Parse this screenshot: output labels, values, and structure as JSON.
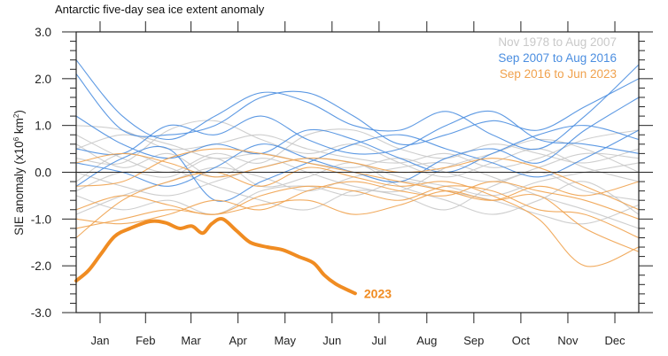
{
  "chart_data": {
    "type": "line",
    "title": "Antarctic five-day sea ice extent anomaly",
    "ylabel": "SIE anomaly (x10⁶ km²)",
    "ylabel_main": "SIE anomaly (x10",
    "ylabel_sup1": "6",
    "ylabel_mid": " km",
    "ylabel_sup2": "2",
    "ylabel_end": ")",
    "xlabel": "",
    "ylim": [
      -3.0,
      3.0
    ],
    "xlim_days": [
      0,
      365
    ],
    "yticks": [
      "3.0",
      "2.0",
      "1.0",
      "0.0",
      "-1.0",
      "-2.0",
      "-3.0"
    ],
    "ytick_values": [
      3,
      2,
      1,
      0,
      -1,
      -2,
      -3
    ],
    "months": [
      "Jan",
      "Feb",
      "Mar",
      "Apr",
      "May",
      "Jun",
      "Jul",
      "Aug",
      "Sep",
      "Oct",
      "Nov",
      "Dec"
    ],
    "zero_line": true,
    "grid": false,
    "legend_position": "top-right",
    "colors": {
      "gray": "#c9c9c9",
      "blue": "#4b8ee0",
      "orange": "#f0a24e",
      "highlight": "#f08c22",
      "axis": "#222222"
    },
    "x_days": [
      0,
      30,
      60,
      90,
      120,
      150,
      180,
      210,
      240,
      270,
      300,
      330,
      365
    ],
    "groups": [
      {
        "name": "Nov 1978 to Aug 2007",
        "color": "#c9c9c9",
        "series": [
          [
            0.5,
            0.8,
            0.6,
            0.3,
            0.4,
            0.2,
            0.1,
            0.3,
            0.0,
            -0.2,
            0.1,
            0.4,
            0.3
          ],
          [
            0.0,
            -0.3,
            -0.5,
            -0.2,
            0.1,
            0.3,
            0.2,
            -0.1,
            -0.3,
            -0.5,
            -0.2,
            0.0,
            0.2
          ],
          [
            1.0,
            0.9,
            0.5,
            0.6,
            0.8,
            0.5,
            0.3,
            0.2,
            0.4,
            0.1,
            0.3,
            0.7,
            0.9
          ],
          [
            -0.5,
            -0.8,
            -0.6,
            -0.9,
            -0.4,
            -0.3,
            -0.5,
            -0.2,
            -0.4,
            -0.6,
            -0.9,
            -1.1,
            -0.7
          ],
          [
            0.3,
            0.2,
            0.9,
            1.1,
            0.7,
            0.4,
            0.6,
            0.2,
            -0.1,
            0.2,
            0.5,
            0.1,
            -0.2
          ],
          [
            -0.2,
            0.4,
            0.1,
            -0.3,
            -0.6,
            -0.8,
            -0.4,
            -0.5,
            -0.8,
            -0.3,
            0.0,
            -0.4,
            -0.6
          ],
          [
            0.8,
            0.3,
            0.0,
            0.4,
            0.2,
            0.8,
            0.9,
            0.5,
            0.3,
            0.6,
            0.4,
            0.2,
            0.5
          ],
          [
            -0.9,
            -0.5,
            -0.2,
            0.1,
            -0.1,
            -0.4,
            -0.1,
            0.1,
            0.2,
            -0.1,
            -0.5,
            -0.8,
            -1.2
          ],
          [
            0.6,
            0.1,
            0.4,
            -0.1,
            0.3,
            0.0,
            -0.3,
            -0.4,
            0.1,
            0.4,
            0.7,
            0.5,
            0.0
          ],
          [
            -0.4,
            0.0,
            -0.1,
            0.3,
            -0.3,
            -0.1,
            0.2,
            -0.3,
            -0.6,
            -0.9,
            -0.6,
            -0.2,
            -0.9
          ]
        ]
      },
      {
        "name": "Sep 2007 to Aug 2016",
        "color": "#4b8ee0",
        "series": [
          [
            2.4,
            1.2,
            0.7,
            1.2,
            1.7,
            1.5,
            1.0,
            0.9,
            1.3,
            0.8,
            0.5,
            1.2,
            2.3
          ],
          [
            2.1,
            0.9,
            0.8,
            1.0,
            1.6,
            1.7,
            1.2,
            0.6,
            0.8,
            1.1,
            0.9,
            1.4,
            2.0
          ],
          [
            0.5,
            0.4,
            1.0,
            0.8,
            1.2,
            0.7,
            0.4,
            0.5,
            1.0,
            1.3,
            0.7,
            0.6,
            0.4
          ],
          [
            0.2,
            0.0,
            -0.3,
            0.1,
            0.6,
            0.3,
            0.0,
            -0.2,
            0.3,
            0.5,
            0.2,
            0.9,
            1.6
          ],
          [
            1.2,
            0.6,
            0.3,
            0.6,
            0.4,
            0.9,
            0.7,
            0.3,
            0.0,
            0.4,
            0.8,
            1.0,
            0.7
          ],
          [
            -0.3,
            0.3,
            0.5,
            -0.6,
            -0.2,
            0.2,
            0.6,
            0.8,
            0.5,
            0.2,
            -0.1,
            0.3,
            0.9
          ]
        ]
      },
      {
        "name": "Sep 2016 to Jun 2023",
        "color": "#f0a24e",
        "series": [
          [
            -1.4,
            -0.6,
            -0.2,
            0.0,
            -0.3,
            0.1,
            -0.1,
            -0.3,
            -0.2,
            -0.5,
            -1.0,
            -2.0,
            -1.6
          ],
          [
            -0.8,
            -0.5,
            -0.7,
            -0.9,
            -0.5,
            -0.3,
            -0.4,
            -0.6,
            -0.3,
            -0.4,
            -0.8,
            -0.9,
            -1.4
          ],
          [
            -1.0,
            -1.1,
            -0.9,
            -0.6,
            -0.8,
            -0.4,
            -0.2,
            -0.4,
            -0.5,
            -0.2,
            -0.4,
            -0.6,
            -1.0
          ],
          [
            0.2,
            0.4,
            0.2,
            -0.1,
            0.1,
            0.3,
            0.2,
            0.0,
            0.1,
            0.3,
            0.1,
            -0.3,
            -0.8
          ],
          [
            -0.3,
            -0.2,
            0.3,
            0.5,
            0.4,
            0.2,
            0.0,
            -0.2,
            -0.4,
            -0.6,
            -0.3,
            -0.5,
            -0.2
          ],
          [
            -1.2,
            -1.0,
            -0.8,
            -0.9,
            -0.7,
            -0.6,
            -0.9,
            -0.7,
            -0.4,
            -0.6,
            -0.5,
            -1.2,
            -1.7
          ]
        ]
      }
    ],
    "highlight": {
      "name": "2023",
      "color": "#f08c22",
      "x_days": [
        0,
        8,
        16,
        25,
        35,
        48,
        58,
        67,
        75,
        82,
        88,
        95,
        104,
        113,
        124,
        134,
        144,
        154,
        161,
        168,
        175,
        181
      ],
      "values": [
        -2.32,
        -2.1,
        -1.75,
        -1.37,
        -1.2,
        -1.05,
        -1.08,
        -1.2,
        -1.15,
        -1.3,
        -1.1,
        -1.0,
        -1.25,
        -1.5,
        -1.6,
        -1.66,
        -1.8,
        -1.94,
        -2.2,
        -2.38,
        -2.5,
        -2.59
      ]
    }
  }
}
